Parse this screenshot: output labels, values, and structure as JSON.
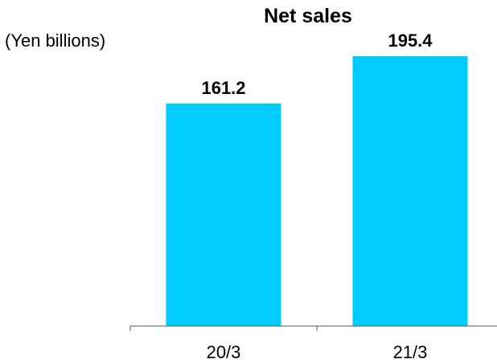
{
  "chart_data": {
    "type": "bar",
    "title": "Net sales",
    "unit_label": "(Yen billions)",
    "categories": [
      "20/3",
      "21/3"
    ],
    "values": [
      161.2,
      195.4
    ],
    "value_labels": [
      "161.2",
      "195.4"
    ],
    "ylim": [
      0,
      195.4
    ],
    "grid": false,
    "legend": "none",
    "bar_color": "#00CCFF",
    "axis_color": "#595959"
  }
}
